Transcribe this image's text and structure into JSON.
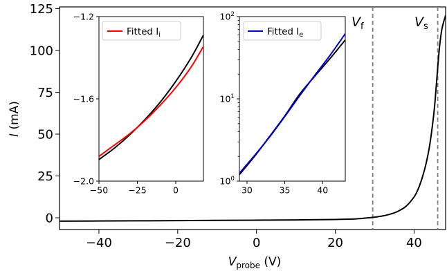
{
  "chart_data": [
    {
      "type": "line",
      "ylabel": "I (mA)",
      "ylabel_parts": {
        "symbol": "I",
        "unit": " (mA)"
      },
      "xlabel": "V_probe (V)",
      "xlabel_parts": {
        "symbol": "V",
        "sub": "probe",
        "unit": " (V)"
      },
      "xlim": [
        -50,
        48
      ],
      "ylim": [
        -7,
        126
      ],
      "xticks": [
        -40,
        -20,
        0,
        20,
        40
      ],
      "xtick_labels": [
        "−40",
        "−20",
        "0",
        "20",
        "40"
      ],
      "yticks": [
        0,
        25,
        50,
        75,
        100,
        125
      ],
      "ytick_labels": [
        "0",
        "25",
        "50",
        "75",
        "100",
        "125"
      ],
      "series": [
        {
          "color": "#000000",
          "x": [
            -50,
            -40,
            -30,
            -20,
            -10,
            0,
            10,
            20,
            25,
            28,
            30,
            32,
            34,
            36,
            38,
            40,
            41,
            42,
            43,
            44,
            45,
            45.5,
            46,
            46.5,
            47,
            47.5,
            48
          ],
          "y": [
            -2.0,
            -1.9,
            -1.8,
            -1.7,
            -1.55,
            -1.4,
            -1.25,
            -1.0,
            -0.7,
            -0.1,
            0.4,
            1.1,
            2.2,
            4.0,
            7.0,
            12.5,
            17.0,
            23.5,
            32.0,
            44.0,
            62.0,
            75.0,
            90.0,
            103.0,
            112.0,
            117.0,
            121.0
          ]
        }
      ],
      "vlines": [
        {
          "x": 29.5,
          "label": "V_f",
          "label_parts": {
            "symbol": "V",
            "sub": "f"
          },
          "color": "#808080"
        },
        {
          "x": 46.0,
          "label": "V_s",
          "label_parts": {
            "symbol": "V",
            "sub": "s"
          },
          "color": "#808080"
        }
      ]
    },
    {
      "type": "line",
      "inset": "left",
      "xlim": [
        -50,
        18
      ],
      "ylim": [
        -2.0,
        -1.2
      ],
      "xticks": [
        -50,
        -25,
        0
      ],
      "xtick_labels": [
        "−50",
        "−25",
        "0"
      ],
      "yticks": [
        -2.0,
        -1.6,
        -1.2
      ],
      "ytick_labels": [
        "−2.0",
        "−1.6",
        "−1.2"
      ],
      "legend": {
        "label": "Fitted I_i",
        "symbol": "Fitted I",
        "sub": "i",
        "color": "#ff0000"
      },
      "series": [
        {
          "color": "#000000",
          "x": [
            -50,
            -40,
            -30,
            -20,
            -10,
            0,
            10,
            18
          ],
          "y": [
            -1.895,
            -1.84,
            -1.775,
            -1.7,
            -1.615,
            -1.515,
            -1.4,
            -1.29
          ]
        },
        {
          "name": "Fitted I_i",
          "color": "#ff0000",
          "x": [
            -50,
            -40,
            -30,
            -20,
            -10,
            0,
            10,
            18
          ],
          "y": [
            -1.88,
            -1.825,
            -1.77,
            -1.705,
            -1.63,
            -1.545,
            -1.445,
            -1.345
          ]
        }
      ]
    },
    {
      "type": "line",
      "inset": "right",
      "xlim": [
        29,
        43
      ],
      "ylim": [
        1,
        100
      ],
      "yscale": "log",
      "xticks": [
        30,
        35,
        40
      ],
      "xtick_labels": [
        "30",
        "35",
        "40"
      ],
      "yticks": [
        1,
        10,
        100
      ],
      "ytick_labels": [
        {
          "base": "10",
          "exp": "0"
        },
        {
          "base": "10",
          "exp": "1"
        },
        {
          "base": "10",
          "exp": "2"
        }
      ],
      "legend": {
        "label": "Fitted I_e",
        "symbol": "Fitted I",
        "sub": "e",
        "color": "#0000cc"
      },
      "series": [
        {
          "color": "#000000",
          "x": [
            29,
            31,
            33,
            35,
            37,
            39,
            41,
            43
          ],
          "y": [
            1.2,
            2.0,
            3.5,
            6.2,
            11.5,
            19.0,
            31.0,
            52.0
          ]
        },
        {
          "name": "Fitted I_e",
          "color": "#0000cc",
          "x": [
            29,
            31,
            33,
            35,
            37,
            39,
            41,
            43
          ],
          "y": [
            1.25,
            2.05,
            3.45,
            6.1,
            11.0,
            19.5,
            34.0,
            62.0
          ]
        }
      ]
    }
  ]
}
